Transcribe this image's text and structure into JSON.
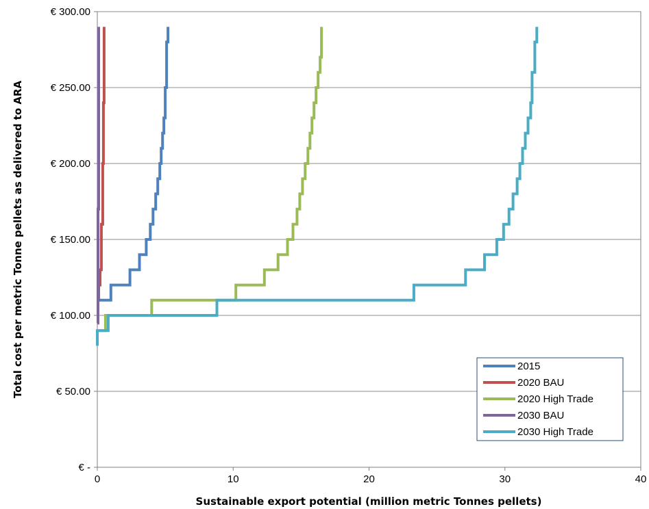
{
  "chart_data": {
    "type": "line",
    "title": "",
    "xlabel": "Sustainable export potential (million metric Tonnes pellets)",
    "ylabel": "Total cost per metric Tonne pellets as delivered to ARA",
    "xlim": [
      0,
      40
    ],
    "ylim": [
      0,
      300
    ],
    "x_ticks": [
      0,
      10,
      20,
      30,
      40
    ],
    "x_tick_labels": [
      "0",
      "10",
      "20",
      "30",
      "40"
    ],
    "y_ticks": [
      0,
      50,
      100,
      150,
      200,
      250,
      300
    ],
    "y_tick_labels": [
      "€ -",
      "€ 50.00",
      "€ 100.00",
      "€ 150.00",
      "€ 200.00",
      "€ 250.00",
      "€ 300.00"
    ],
    "grid": "horizontal",
    "legend_position": "bottom-right",
    "series": [
      {
        "name": "2015",
        "color": "#4f81bd",
        "x": [
          0,
          1.0,
          1.0,
          2.4,
          2.4,
          3.1,
          3.1,
          3.6,
          3.6,
          3.9,
          3.9,
          4.1,
          4.1,
          4.3,
          4.3,
          4.45,
          4.45,
          4.6,
          4.6,
          4.7,
          4.7,
          4.8,
          4.8,
          4.9,
          4.9,
          5.0,
          5.0,
          5.1,
          5.1,
          5.2,
          5.2
        ],
        "y": [
          110,
          110,
          120,
          120,
          130,
          130,
          140,
          140,
          150,
          150,
          160,
          160,
          170,
          170,
          180,
          180,
          190,
          190,
          200,
          200,
          210,
          210,
          220,
          220,
          230,
          230,
          250,
          250,
          280,
          280,
          290
        ]
      },
      {
        "name": "2020 BAU",
        "color": "#c0504d",
        "x": [
          0,
          0.05,
          0.05,
          0.1,
          0.1,
          0.2,
          0.2,
          0.3,
          0.3,
          0.4,
          0.4,
          0.45,
          0.45,
          0.5,
          0.5
        ],
        "y": [
          95,
          95,
          110,
          110,
          120,
          120,
          130,
          130,
          160,
          160,
          200,
          200,
          240,
          240,
          290
        ]
      },
      {
        "name": "2020 High Trade",
        "color": "#9bbb59",
        "x": [
          0,
          0.6,
          0.6,
          4.0,
          4.0,
          10.2,
          10.2,
          12.3,
          12.3,
          13.3,
          13.3,
          14.0,
          14.0,
          14.4,
          14.4,
          14.7,
          14.7,
          14.9,
          14.9,
          15.1,
          15.1,
          15.3,
          15.3,
          15.5,
          15.5,
          15.65,
          15.65,
          15.8,
          15.8,
          15.95,
          15.95,
          16.1,
          16.1,
          16.25,
          16.25,
          16.4,
          16.4,
          16.5,
          16.5
        ],
        "y": [
          90,
          90,
          100,
          100,
          110,
          110,
          120,
          120,
          130,
          130,
          140,
          140,
          150,
          150,
          160,
          160,
          170,
          170,
          180,
          180,
          190,
          190,
          200,
          200,
          210,
          210,
          220,
          220,
          230,
          230,
          240,
          240,
          250,
          250,
          260,
          260,
          270,
          270,
          290
        ]
      },
      {
        "name": "2030 BAU",
        "color": "#8064a2",
        "x": [
          0,
          0.05,
          0.05,
          0.1,
          0.1
        ],
        "y": [
          95,
          95,
          170,
          170,
          290
        ]
      },
      {
        "name": "2030 High Trade",
        "color": "#4bacc6",
        "x": [
          0,
          0,
          0.8,
          0.8,
          8.8,
          8.8,
          23.3,
          23.3,
          27.1,
          27.1,
          28.5,
          28.5,
          29.4,
          29.4,
          29.9,
          29.9,
          30.3,
          30.3,
          30.6,
          30.6,
          30.9,
          30.9,
          31.1,
          31.1,
          31.3,
          31.3,
          31.5,
          31.5,
          31.7,
          31.7,
          31.9,
          31.9,
          32.0,
          32.0,
          32.2,
          32.2,
          32.35,
          32.35
        ],
        "y": [
          80,
          90,
          90,
          100,
          100,
          110,
          110,
          120,
          120,
          130,
          130,
          140,
          140,
          150,
          150,
          160,
          160,
          170,
          170,
          180,
          180,
          190,
          190,
          200,
          200,
          210,
          210,
          220,
          220,
          230,
          230,
          240,
          240,
          260,
          260,
          280,
          280,
          290
        ]
      }
    ]
  }
}
